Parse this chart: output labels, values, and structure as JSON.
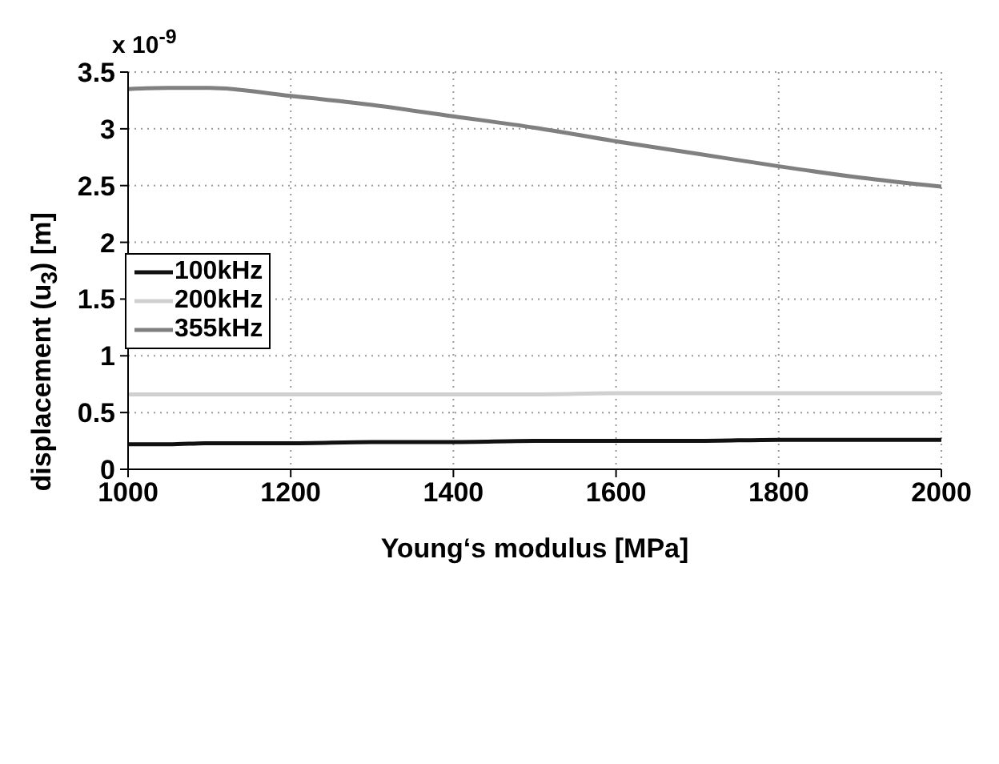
{
  "chart_data": {
    "type": "line",
    "xlabel": "Young‘s modulus [MPa]",
    "ylabel": "displacement (u$_{3}$) [m]",
    "annotations": [
      "x 10$^{-9}$"
    ],
    "x": [
      1000,
      1050,
      1100,
      1200,
      1300,
      1400,
      1500,
      1600,
      1700,
      1800,
      1900,
      2000
    ],
    "series": [
      {
        "name": "100kHz",
        "color": "#111111",
        "values": [
          0.22,
          0.22,
          0.23,
          0.23,
          0.24,
          0.24,
          0.25,
          0.25,
          0.25,
          0.26,
          0.26,
          0.26
        ]
      },
      {
        "name": "200kHz",
        "color": "#d0d0d0",
        "values": [
          0.66,
          0.66,
          0.66,
          0.66,
          0.66,
          0.66,
          0.66,
          0.67,
          0.67,
          0.67,
          0.67,
          0.67
        ]
      },
      {
        "name": "355kHz",
        "color": "#808080",
        "values": [
          3.35,
          3.36,
          3.36,
          3.29,
          3.21,
          3.11,
          3.01,
          2.89,
          2.78,
          2.67,
          2.57,
          2.49
        ]
      }
    ],
    "xlim": [
      1000,
      2000
    ],
    "xticks": [
      1000,
      1200,
      1400,
      1600,
      1800,
      2000
    ],
    "ylim": [
      0,
      3.5
    ],
    "yticks": [
      0,
      0.5,
      1,
      1.5,
      2,
      2.5,
      3,
      3.5
    ],
    "grid": true,
    "legend": "left",
    "marker": "none",
    "line_style": "solid"
  }
}
